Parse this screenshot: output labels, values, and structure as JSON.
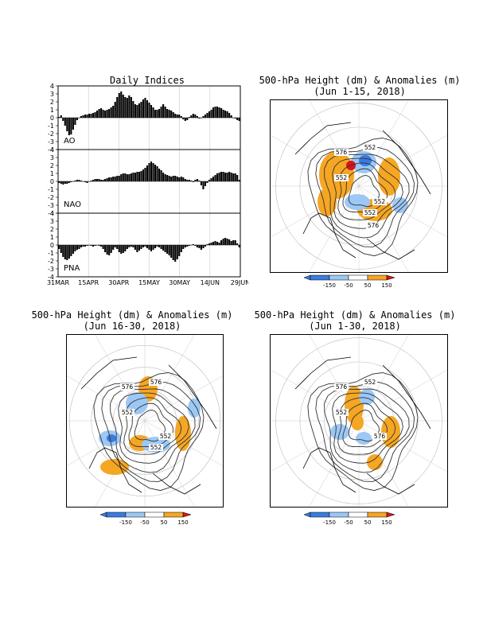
{
  "indices": {
    "title": "Daily Indices",
    "panels": [
      {
        "label": "AO",
        "ticks": [
          "4",
          "3",
          "2",
          "1",
          "0",
          "-1",
          "-2",
          "-3",
          "-4"
        ]
      },
      {
        "label": "NAO",
        "ticks": [
          "4",
          "3",
          "2",
          "1",
          "0",
          "-1",
          "-2",
          "-3",
          "-4"
        ]
      },
      {
        "label": "PNA",
        "ticks": [
          "4",
          "3",
          "2",
          "1",
          "0",
          "-1",
          "-2",
          "-3",
          "-4"
        ]
      }
    ],
    "xticks": [
      "31MAR",
      "15APR",
      "30APR",
      "15MAY",
      "30MAY",
      "14JUN",
      "29JUN"
    ]
  },
  "maps": [
    {
      "title": "500-hPa Height (dm) & Anomalies (m)",
      "period": "(Jun 1-15, 2018)",
      "contour_labels": [
        "576",
        "552",
        "552",
        "552",
        "552",
        "576"
      ]
    },
    {
      "title": "500-hPa Height (dm) & Anomalies (m)",
      "period": "(Jun 16-30, 2018)",
      "contour_labels": [
        "576",
        "576",
        "552",
        "552",
        "552"
      ]
    },
    {
      "title": "500-hPa Height (dm) & Anomalies (m)",
      "period": "(Jun 1-30, 2018)",
      "contour_labels": [
        "576",
        "552",
        "552",
        "576"
      ]
    }
  ],
  "colorbar": {
    "labels": [
      "-150",
      "-50",
      "50",
      "150"
    ],
    "colors": [
      "#3a7be0",
      "#9cc8f5",
      "#ffffff",
      "#f5a623",
      "#d9141b"
    ]
  },
  "chart_data": [
    {
      "type": "bar",
      "title": "Daily Indices",
      "series_label": "AO",
      "x_start": "31MAR",
      "x_end": "29JUN",
      "ylim": [
        -4,
        4
      ],
      "values": [
        0.1,
        0.3,
        -0.4,
        -1.0,
        -1.7,
        -2.2,
        -2.1,
        -1.5,
        -0.9,
        -0.3,
        0.0,
        0.2,
        0.3,
        0.4,
        0.4,
        0.5,
        0.5,
        0.6,
        0.7,
        0.9,
        1.1,
        1.2,
        1.0,
        0.9,
        1.0,
        1.1,
        1.3,
        1.5,
        2.0,
        2.6,
        3.1,
        3.3,
        2.9,
        2.6,
        2.5,
        2.8,
        2.6,
        2.1,
        1.7,
        1.6,
        1.8,
        2.0,
        2.3,
        2.5,
        2.2,
        1.9,
        1.6,
        1.3,
        1.0,
        1.0,
        1.1,
        1.4,
        1.7,
        1.4,
        1.1,
        1.0,
        0.9,
        0.7,
        0.5,
        0.4,
        0.4,
        0.2,
        -0.2,
        -0.4,
        -0.3,
        0.1,
        0.3,
        0.5,
        0.4,
        0.2,
        -0.1,
        0.0,
        0.2,
        0.4,
        0.6,
        0.8,
        1.0,
        1.3,
        1.4,
        1.4,
        1.3,
        1.2,
        1.0,
        0.9,
        0.8,
        0.6,
        0.3,
        0.0,
        -0.1,
        -0.3,
        -0.4
      ]
    },
    {
      "type": "bar",
      "series_label": "NAO",
      "x_start": "31MAR",
      "x_end": "29JUN",
      "ylim": [
        -4,
        4
      ],
      "values": [
        -0.2,
        -0.3,
        -0.4,
        -0.3,
        -0.3,
        -0.2,
        -0.1,
        0.0,
        0.1,
        0.2,
        0.2,
        0.1,
        0.0,
        -0.1,
        -0.2,
        0.0,
        0.1,
        0.2,
        0.3,
        0.3,
        0.3,
        0.2,
        0.2,
        0.3,
        0.4,
        0.5,
        0.5,
        0.6,
        0.6,
        0.7,
        0.7,
        0.9,
        1.0,
        1.0,
        0.9,
        0.9,
        1.0,
        1.1,
        1.1,
        1.2,
        1.2,
        1.3,
        1.5,
        1.7,
        2.0,
        2.3,
        2.5,
        2.3,
        2.1,
        1.9,
        1.6,
        1.4,
        1.1,
        0.9,
        0.8,
        0.7,
        0.6,
        0.7,
        0.7,
        0.6,
        0.5,
        0.6,
        0.5,
        0.3,
        0.2,
        0.2,
        0.1,
        -0.1,
        0.2,
        0.3,
        0.1,
        -0.5,
        -1.0,
        -0.6,
        -0.2,
        0.2,
        0.4,
        0.6,
        0.8,
        1.0,
        1.1,
        1.2,
        1.2,
        1.1,
        1.1,
        1.2,
        1.1,
        1.0,
        1.0,
        0.8,
        0.2
      ]
    },
    {
      "type": "bar",
      "series_label": "PNA",
      "x_start": "31MAR",
      "x_end": "29JUN",
      "ylim": [
        -4,
        4
      ],
      "values": [
        -0.5,
        -1.0,
        -1.5,
        -1.8,
        -1.9,
        -1.7,
        -1.4,
        -1.1,
        -0.8,
        -0.6,
        -0.5,
        -0.3,
        -0.2,
        -0.2,
        -0.1,
        0.0,
        -0.1,
        -0.2,
        -0.1,
        0.0,
        -0.1,
        -0.2,
        -0.5,
        -0.9,
        -1.2,
        -1.3,
        -1.0,
        -0.6,
        -0.3,
        -0.5,
        -0.9,
        -1.1,
        -1.0,
        -0.8,
        -0.5,
        -0.3,
        -0.2,
        -0.3,
        -0.6,
        -0.9,
        -0.7,
        -0.5,
        -0.3,
        -0.2,
        -0.4,
        -0.6,
        -0.8,
        -0.6,
        -0.4,
        -0.2,
        -0.3,
        -0.5,
        -0.7,
        -0.9,
        -1.1,
        -1.3,
        -1.6,
        -1.9,
        -2.1,
        -1.8,
        -1.4,
        -0.9,
        -0.5,
        -0.3,
        -0.2,
        -0.1,
        0.0,
        0.1,
        -0.1,
        -0.3,
        -0.4,
        -0.6,
        -0.4,
        -0.2,
        0.1,
        0.2,
        0.3,
        0.4,
        0.5,
        0.4,
        0.3,
        0.6,
        0.8,
        0.9,
        0.8,
        0.7,
        0.5,
        0.6,
        0.6,
        0.2,
        -0.3
      ]
    }
  ]
}
